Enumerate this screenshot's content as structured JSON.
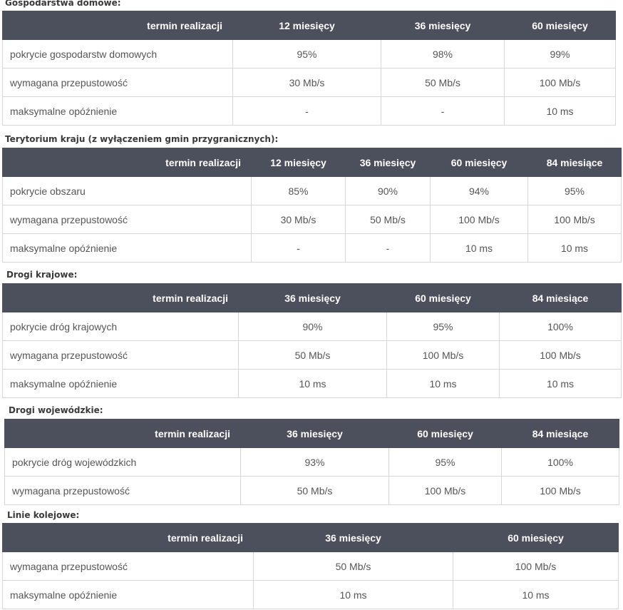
{
  "sections": [
    {
      "title": "Gospodarstwa domowe:",
      "header": [
        "termin realizacji",
        "12 miesięcy",
        "36 miesięcy",
        "60 miesięcy"
      ],
      "rows": [
        [
          "pokrycie gospodarstw domowych",
          "95%",
          "98%",
          "99%"
        ],
        [
          "wymagana przepustowość",
          "30 Mb/s",
          "50 Mb/s",
          "100 Mb/s"
        ],
        [
          "maksymalne opóźnienie",
          "-",
          "-",
          "10 ms"
        ]
      ]
    },
    {
      "title": "Terytorium kraju (z wyłączeniem gmin przygranicznych):",
      "header": [
        "termin realizacji",
        "12 miesięcy",
        "36 miesięcy",
        "60 miesięcy",
        "84 miesiące"
      ],
      "rows": [
        [
          "pokrycie obszaru",
          "85%",
          "90%",
          "94%",
          "95%"
        ],
        [
          "wymagana przepustowość",
          "30 Mb/s",
          "50 Mb/s",
          "100 Mb/s",
          "100 Mb/s"
        ],
        [
          "maksymalne opóźnienie",
          "-",
          "-",
          "10 ms",
          "10 ms"
        ]
      ]
    },
    {
      "title": "Drogi krajowe:",
      "header": [
        "termin realizacji",
        "36 miesięcy",
        "60 miesięcy",
        "84 miesiące"
      ],
      "rows": [
        [
          "pokrycie dróg krajowych",
          "90%",
          "95%",
          "100%"
        ],
        [
          "wymagana przepustowość",
          "50 Mb/s",
          "100 Mb/s",
          "100 Mb/s"
        ],
        [
          "maksymalne opóźnienie",
          "10 ms",
          "10 ms",
          "10 ms"
        ]
      ]
    },
    {
      "title": "Drogi wojewódzkie:",
      "header": [
        "termin realizacji",
        "36 miesięcy",
        "60 miesięcy",
        "84 miesiące"
      ],
      "rows": [
        [
          "pokrycie dróg wojewódzkich",
          "93%",
          "95%",
          "100%"
        ],
        [
          "wymagana przepustowość",
          "50 Mb/s",
          "100 Mb/s",
          "100 Mb/s"
        ]
      ]
    },
    {
      "title": "Linie kolejowe:",
      "header": [
        "termin realizacji",
        "36 miesięcy",
        "60 miesięcy"
      ],
      "rows": [
        [
          "wymagana przepustowość",
          "50 Mb/s",
          "100 Mb/s"
        ],
        [
          "maksymalne opóźnienie",
          "10 ms",
          "10 ms"
        ]
      ]
    }
  ]
}
